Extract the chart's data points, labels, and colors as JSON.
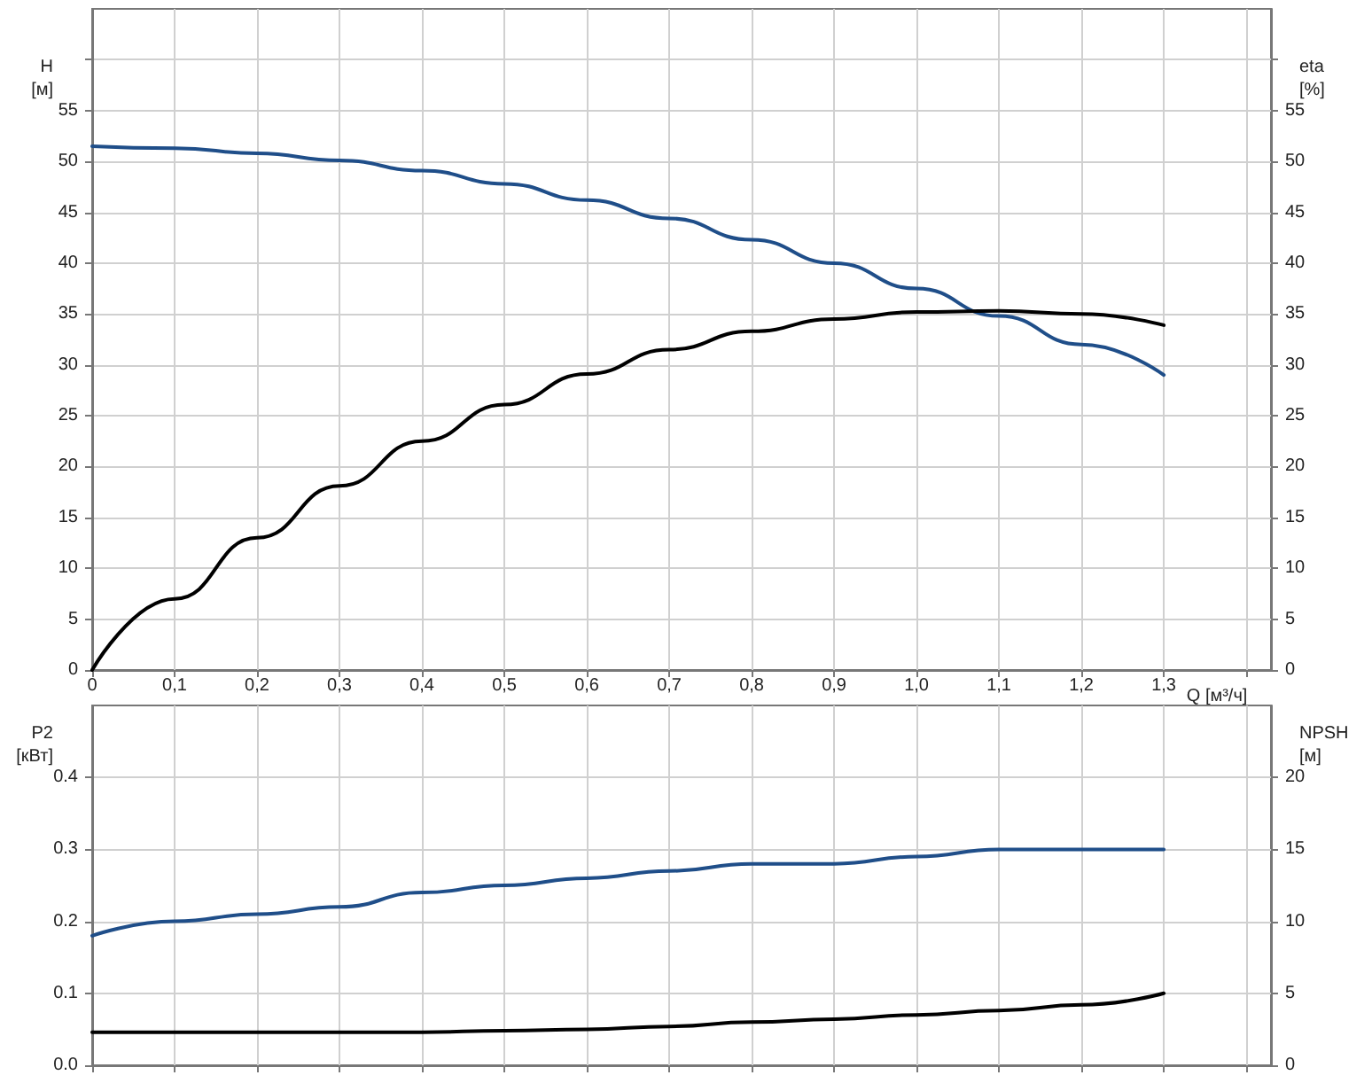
{
  "chart_data": [
    {
      "type": "line",
      "xlabel": "Q [м³/ч]",
      "ylabel": "H [м]",
      "y2label": "eta [%]",
      "grid": true,
      "marker": "none",
      "line_style": "solid",
      "x": [
        0,
        0.1,
        0.2,
        0.3,
        0.4,
        0.5,
        0.6,
        0.7,
        0.8,
        0.9,
        1.0,
        1.1,
        1.2,
        1.3
      ],
      "xlim": [
        0,
        1.43
      ],
      "xticks": [
        0,
        {
          "value": 0.1,
          "label": "0,1"
        },
        {
          "value": 0.2,
          "label": "0,2"
        },
        {
          "value": 0.3,
          "label": "0,3"
        },
        {
          "value": 0.4,
          "label": "0,4"
        },
        {
          "value": 0.5,
          "label": "0,5"
        },
        {
          "value": 0.6,
          "label": "0,6"
        },
        {
          "value": 0.7,
          "label": "0,7"
        },
        {
          "value": 0.8,
          "label": "0,8"
        },
        {
          "value": 0.9,
          "label": "0,9"
        },
        {
          "value": 1.0,
          "label": "1,0"
        },
        {
          "value": 1.1,
          "label": "1,1"
        },
        {
          "value": 1.2,
          "label": "1,2"
        },
        {
          "value": 1.3,
          "label": "1,3"
        },
        {
          "value": 1.4,
          "label": null
        }
      ],
      "ylim": [
        0,
        65
      ],
      "yticks": [
        0,
        5,
        10,
        15,
        20,
        25,
        30,
        35,
        40,
        45,
        50,
        55,
        {
          "value": 60,
          "label": null
        }
      ],
      "y2lim": [
        0,
        65
      ],
      "y2ticks": [
        0,
        5,
        10,
        15,
        20,
        25,
        30,
        35,
        40,
        45,
        50,
        55,
        {
          "value": 60,
          "label": null
        }
      ],
      "series": [
        {
          "color": "#1f4e89",
          "values": [
            51.5,
            51.3,
            50.8,
            50.1,
            49.1,
            47.8,
            46.2,
            44.4,
            42.3,
            40.0,
            37.5,
            34.8,
            32.0,
            29.0
          ]
        },
        {
          "color": "#000000",
          "axis": "y2",
          "values": [
            0,
            7,
            13,
            18.1,
            22.5,
            26.1,
            29.1,
            31.5,
            33.3,
            34.5,
            35.2,
            35.3,
            35.0,
            33.9
          ]
        }
      ]
    },
    {
      "type": "line",
      "ylabel": "P2 [кВт]",
      "y2label": "NPSH [м]",
      "grid": true,
      "marker": "none",
      "line_style": "solid",
      "tick_labels": "y",
      "x": [
        0,
        0.1,
        0.2,
        0.3,
        0.4,
        0.5,
        0.6,
        0.7,
        0.8,
        0.9,
        1.0,
        1.1,
        1.2,
        1.3
      ],
      "xlim": [
        0,
        1.43
      ],
      "xticks": [
        0,
        0.1,
        0.2,
        0.3,
        0.4,
        0.5,
        0.6,
        0.7,
        0.8,
        0.9,
        1.0,
        1.1,
        1.2,
        1.3,
        1.4
      ],
      "ylim": [
        0,
        0.5
      ],
      "yticks": [
        {
          "value": 0,
          "label": "0.0"
        },
        0.1,
        0.2,
        0.3,
        0.4
      ],
      "y2lim": [
        0,
        25
      ],
      "y2ticks": [
        0,
        5,
        10,
        15,
        20
      ],
      "series": [
        {
          "color": "#1f4e89",
          "values": [
            0.18,
            0.2,
            0.21,
            0.22,
            0.24,
            0.25,
            0.26,
            0.27,
            0.28,
            0.28,
            0.29,
            0.3,
            0.3,
            0.3
          ]
        },
        {
          "color": "#000000",
          "axis": "y2",
          "values": [
            2.3,
            2.3,
            2.3,
            2.3,
            2.3,
            2.4,
            2.5,
            2.7,
            3.0,
            3.2,
            3.5,
            3.8,
            4.2,
            5.0
          ]
        }
      ]
    }
  ]
}
